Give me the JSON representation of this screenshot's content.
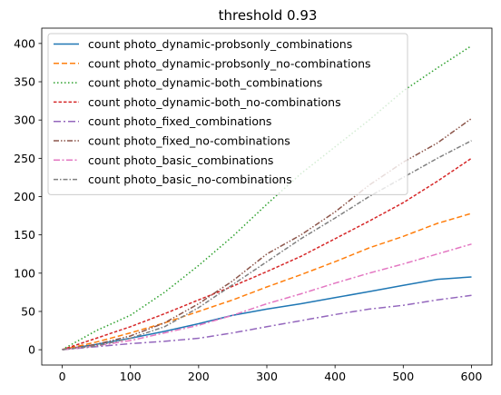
{
  "chart_data": {
    "type": "line",
    "title": "threshold 0.93",
    "xlabel": "",
    "ylabel": "",
    "xlim": [
      -30,
      630
    ],
    "ylim": [
      -20,
      420
    ],
    "xticks": [
      0,
      100,
      200,
      300,
      400,
      500,
      600
    ],
    "yticks": [
      0,
      50,
      100,
      150,
      200,
      250,
      300,
      350,
      400
    ],
    "grid": false,
    "legend_position": "top-left",
    "series": [
      {
        "name": "count photo_dynamic-probsonly_combinations",
        "color": "#1f77b4",
        "dash": "",
        "x": [
          0,
          50,
          100,
          150,
          200,
          250,
          300,
          350,
          400,
          450,
          500,
          550,
          600
        ],
        "y": [
          0,
          7,
          15,
          24,
          34,
          45,
          53,
          60,
          68,
          76,
          84,
          92,
          95
        ]
      },
      {
        "name": "count photo_dynamic-probsonly_no-combinations",
        "color": "#ff7f0e",
        "dash": "6,3",
        "x": [
          0,
          50,
          100,
          150,
          200,
          250,
          300,
          350,
          400,
          450,
          500,
          550,
          600
        ],
        "y": [
          0,
          10,
          22,
          35,
          50,
          65,
          82,
          98,
          115,
          133,
          148,
          165,
          178
        ]
      },
      {
        "name": "count photo_dynamic-both_combinations",
        "color": "#2ca02c",
        "dash": "1.5,2.5",
        "x": [
          0,
          50,
          100,
          150,
          200,
          250,
          300,
          350,
          400,
          450,
          500,
          550,
          600
        ],
        "y": [
          0,
          25,
          45,
          75,
          110,
          148,
          190,
          230,
          265,
          300,
          338,
          368,
          397
        ]
      },
      {
        "name": "count photo_dynamic-both_no-combinations",
        "color": "#d62728",
        "dash": "3.5,2",
        "x": [
          0,
          50,
          100,
          150,
          200,
          250,
          300,
          350,
          400,
          450,
          500,
          550,
          600
        ],
        "y": [
          0,
          15,
          30,
          47,
          65,
          83,
          102,
          122,
          145,
          168,
          192,
          220,
          250
        ]
      },
      {
        "name": "count photo_fixed_combinations",
        "color": "#9467bd",
        "dash": "8,3,2,3",
        "x": [
          0,
          50,
          100,
          150,
          200,
          250,
          300,
          350,
          400,
          450,
          500,
          550,
          600
        ],
        "y": [
          0,
          4,
          8,
          11,
          15,
          22,
          30,
          38,
          46,
          53,
          58,
          65,
          71
        ]
      },
      {
        "name": "count photo_fixed_no-combinations",
        "color": "#8c564b",
        "dash": "6,2,1.5,2,1.5,2",
        "x": [
          0,
          50,
          100,
          150,
          200,
          250,
          300,
          350,
          400,
          450,
          500,
          550,
          600
        ],
        "y": [
          0,
          7,
          18,
          35,
          60,
          90,
          125,
          150,
          180,
          215,
          245,
          270,
          302
        ]
      },
      {
        "name": "count photo_basic_combinations",
        "color": "#e377c2",
        "dash": "7,2.5,2,2.5",
        "x": [
          0,
          50,
          100,
          150,
          200,
          250,
          300,
          350,
          400,
          450,
          500,
          550,
          600
        ],
        "y": [
          0,
          5,
          12,
          22,
          32,
          45,
          60,
          73,
          87,
          100,
          112,
          125,
          138
        ]
      },
      {
        "name": "count photo_basic_no-combinations",
        "color": "#7f7f7f",
        "dash": "5,2,1.5,2",
        "x": [
          0,
          50,
          100,
          150,
          200,
          250,
          300,
          350,
          400,
          450,
          500,
          550,
          600
        ],
        "y": [
          0,
          5,
          15,
          30,
          55,
          85,
          115,
          145,
          172,
          200,
          225,
          250,
          273
        ]
      }
    ]
  }
}
